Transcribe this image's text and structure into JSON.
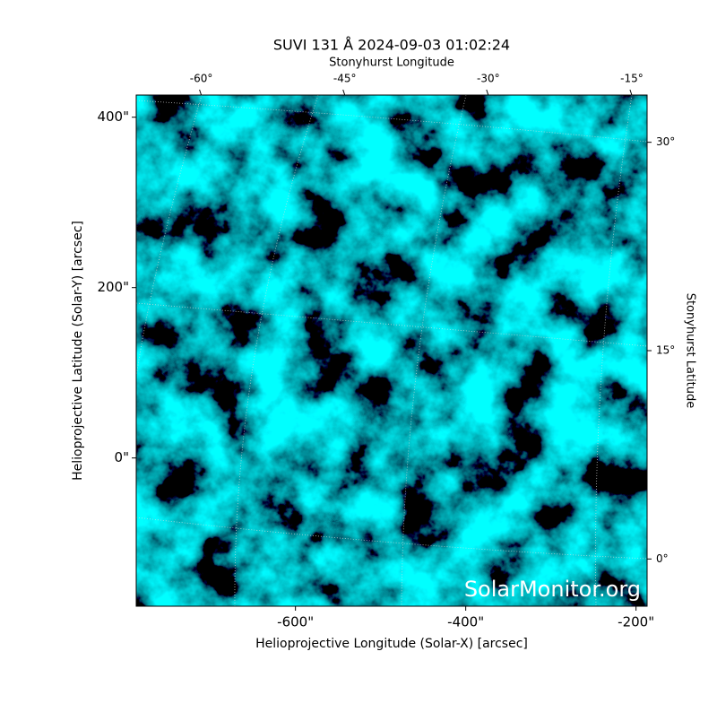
{
  "chart_data": {
    "type": "image",
    "title": "SUVI 131 Å 2024-09-03 01:02:24",
    "x_label": "Helioprojective Longitude (Solar-X) [arcsec]",
    "y_label": "Helioprojective Latitude (Solar-Y) [arcsec]",
    "x2_label": "Stonyhurst Longitude",
    "y2_label": "Stonyhurst Latitude",
    "watermark": "SolarMonitor.org",
    "xlim": [
      -787,
      -187
    ],
    "xticks": [
      {
        "value": -600,
        "label": "-600\""
      },
      {
        "value": -400,
        "label": "-400\""
      },
      {
        "value": -200,
        "label": "-200\""
      }
    ],
    "ylim": [
      -174,
      426
    ],
    "yticks": [
      {
        "value": 0,
        "label": "0\""
      },
      {
        "value": 200,
        "label": "200\""
      },
      {
        "value": 400,
        "label": "400\""
      }
    ],
    "x2lim": [
      -66.8,
      -13.4
    ],
    "x2ticks": [
      {
        "value": -60,
        "label": "-60°"
      },
      {
        "value": -45,
        "label": "-45°"
      },
      {
        "value": -30,
        "label": "-30°"
      },
      {
        "value": -15,
        "label": "-15°"
      }
    ],
    "y2lim": [
      -3.4,
      33.4
    ],
    "y2ticks": [
      {
        "value": 0,
        "label": "0°"
      },
      {
        "value": 15,
        "label": "15°"
      },
      {
        "value": 30,
        "label": "30°"
      }
    ]
  }
}
